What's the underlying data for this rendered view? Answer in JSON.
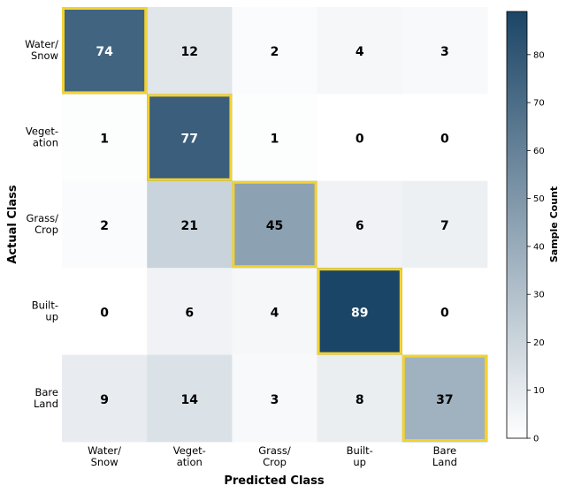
{
  "chart_data": {
    "type": "heatmap",
    "xlabel": "Predicted Class",
    "ylabel": "Actual Class",
    "x_categories": [
      [
        "Water/",
        "Snow"
      ],
      [
        "Veget-",
        "ation"
      ],
      [
        "Grass/",
        "Crop"
      ],
      [
        "Built-",
        "up"
      ],
      [
        "Bare",
        "Land"
      ]
    ],
    "y_categories": [
      [
        "Water/",
        "Snow"
      ],
      [
        "Veget-",
        "ation"
      ],
      [
        "Grass/",
        "Crop"
      ],
      [
        "Built-",
        "up"
      ],
      [
        "Bare",
        "Land"
      ]
    ],
    "values": [
      [
        74,
        12,
        2,
        4,
        3
      ],
      [
        1,
        77,
        1,
        0,
        0
      ],
      [
        2,
        21,
        45,
        6,
        7
      ],
      [
        0,
        6,
        4,
        89,
        0
      ],
      [
        9,
        14,
        3,
        8,
        37
      ]
    ],
    "highlight": "diagonal",
    "highlight_color": "#f2d230",
    "colorbar": {
      "label": "Sample Count",
      "range": [
        0,
        89
      ],
      "ticks": [
        0,
        10,
        20,
        30,
        40,
        50,
        60,
        70,
        80
      ],
      "color_low": "#ffffff",
      "color_high": "#1b4566"
    }
  }
}
